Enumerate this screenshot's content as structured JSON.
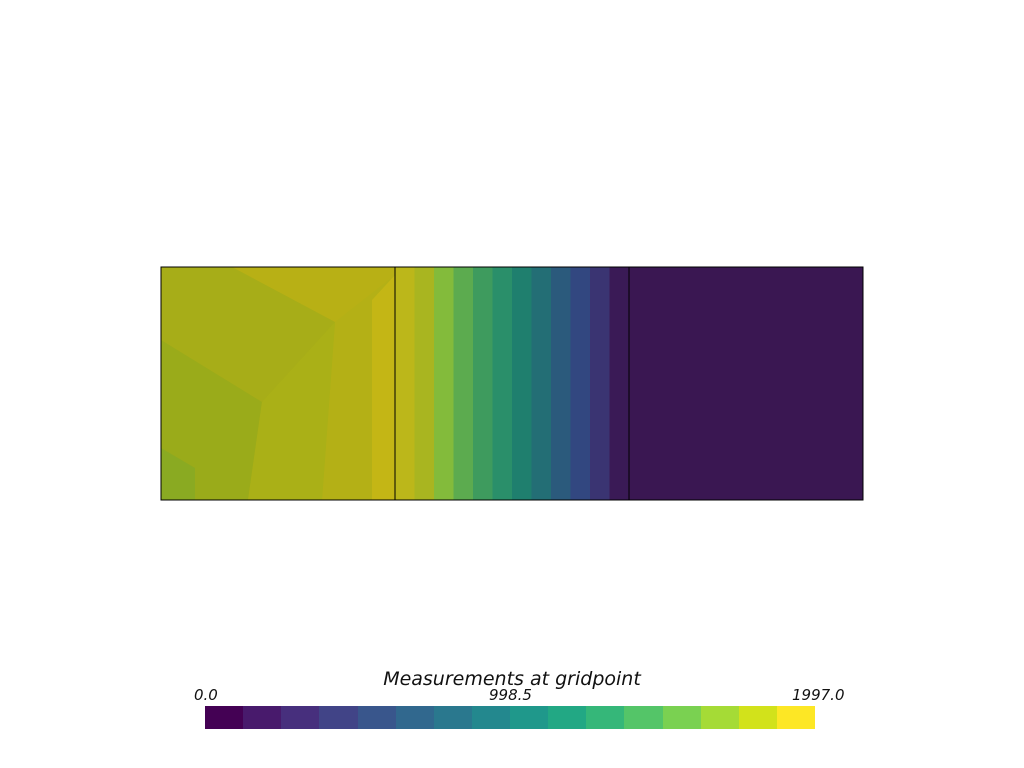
{
  "scalar_bar": {
    "title": "Measurements at gridpoint",
    "min_label": "0.0",
    "mid_label": "998.5",
    "max_label": "1997.0",
    "range": [
      0.0,
      1997.0
    ],
    "colormap": "viridis",
    "band_colors": [
      "#440154",
      "#481a6c",
      "#472f7d",
      "#414487",
      "#39568c",
      "#31688e",
      "#2a788e",
      "#23888e",
      "#1f988b",
      "#22a884",
      "#35b779",
      "#54c568",
      "#7ad151",
      "#a5db36",
      "#d2e21b",
      "#fde725"
    ]
  },
  "mesh": {
    "cells": 3,
    "cell_colors": {
      "left": "#a9b317",
      "middle_gradient": [
        "#bcb71a",
        "#a9b520",
        "#83bb3b",
        "#5cab4f",
        "#3e9b5e",
        "#2a8f6a",
        "#1f7f6e",
        "#236e75",
        "#2b5a7c",
        "#324780",
        "#3a3472",
        "#3a1a56"
      ],
      "right": "#3a1752"
    },
    "edge_color": "#000000"
  }
}
